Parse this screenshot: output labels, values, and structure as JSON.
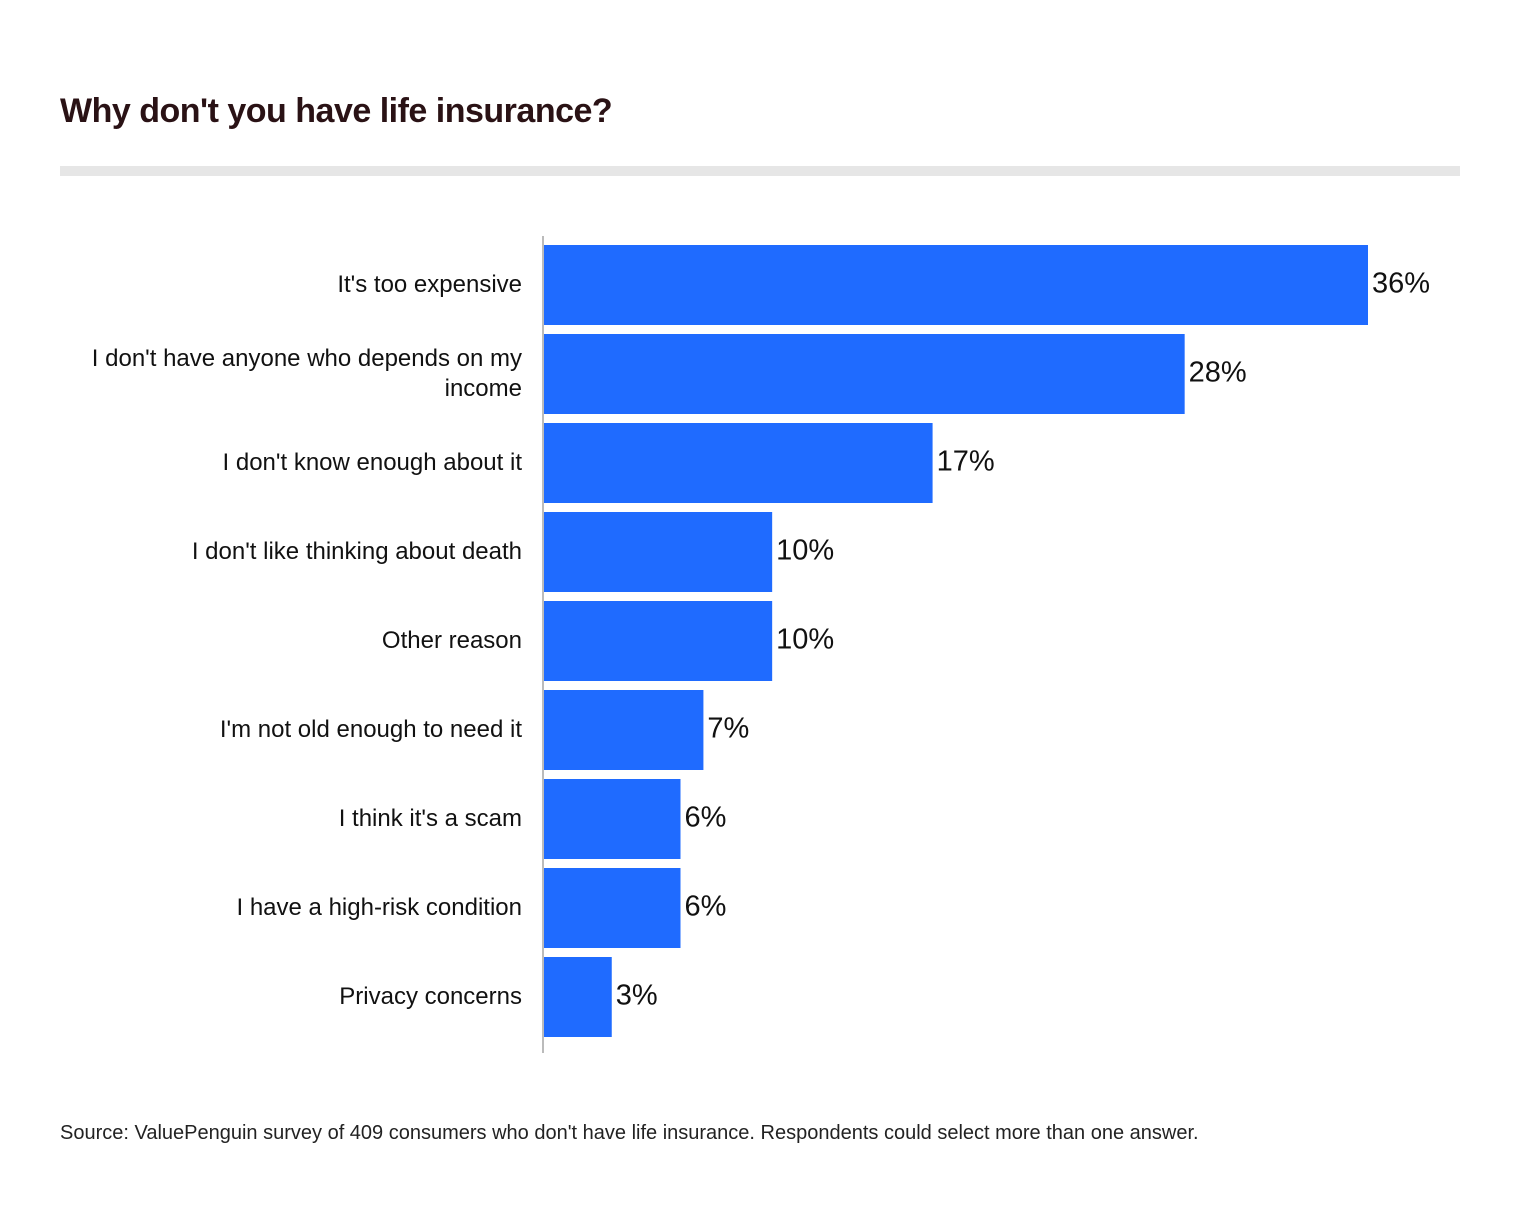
{
  "chart_data": {
    "type": "bar",
    "orientation": "horizontal",
    "title": "Why don't you have life insurance?",
    "categories": [
      "It's too expensive",
      "I don't have anyone who depends on my income",
      "I don't know enough about it",
      "I don't like thinking about death",
      "Other reason",
      "I'm not old enough to need it",
      "I think it's a scam",
      "I have a high-risk condition",
      "Privacy concerns"
    ],
    "values": [
      36,
      28,
      17,
      10,
      10,
      7,
      6,
      6,
      3
    ],
    "value_labels": [
      "36%",
      "28%",
      "17%",
      "10%",
      "10%",
      "7%",
      "6%",
      "6%",
      "3%"
    ],
    "color": "#1f6bff",
    "source": "Source: ValuePenguin survey of 409 consumers who don't have life insurance. Respondents could select more than one answer."
  }
}
